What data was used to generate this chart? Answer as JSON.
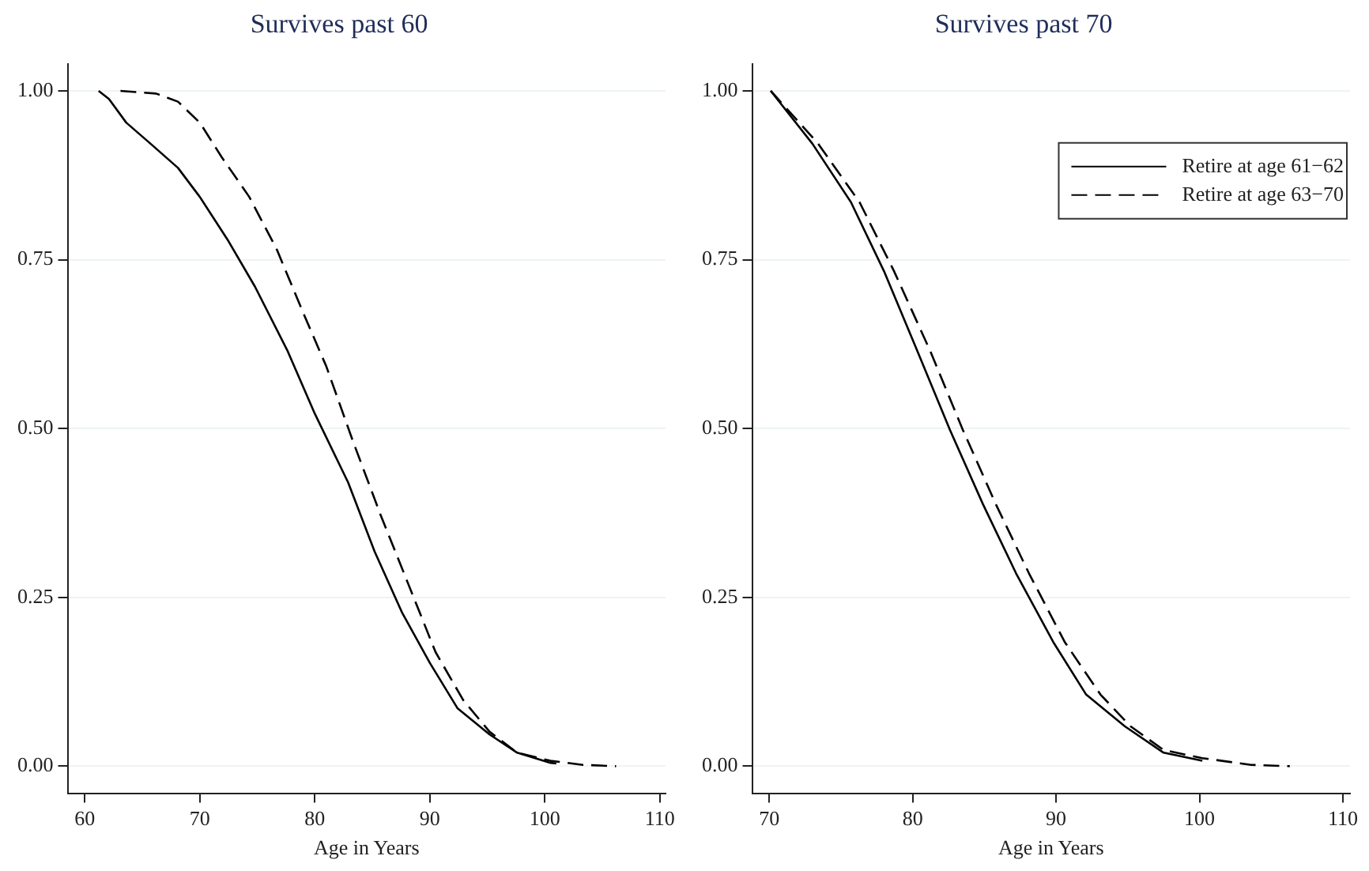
{
  "chart_data": [
    {
      "type": "line",
      "title": "Survives past 60",
      "xlabel": "Age in Years",
      "xlim": [
        58.5,
        110.5
      ],
      "xticks": [
        60,
        70,
        80,
        90,
        100,
        110
      ],
      "ylim": [
        -0.04,
        1.04
      ],
      "yticks": [
        {
          "value": 0,
          "label": "0.00"
        },
        {
          "value": 0.25,
          "label": "0.25"
        },
        {
          "value": 0.5,
          "label": "0.50"
        },
        {
          "value": 0.75,
          "label": "0.75"
        },
        {
          "value": 1,
          "label": "1.00"
        }
      ],
      "grid": "y",
      "legend": false,
      "marker": "none",
      "series": [
        {
          "color": "#000000",
          "line_style": "solid",
          "x": [
            61.2,
            62.1,
            63.6,
            65.7,
            68.1,
            70,
            72.4,
            74.8,
            77.6,
            80,
            82.9,
            85.2,
            87.6,
            90,
            92.4,
            95.2,
            97.6,
            100.5,
            101
          ],
          "values": [
            1,
            0.988,
            0.953,
            0.922,
            0.886,
            0.843,
            0.78,
            0.71,
            0.616,
            0.522,
            0.42,
            0.318,
            0.227,
            0.153,
            0.086,
            0.047,
            0.02,
            0.005,
            0.004
          ]
        },
        {
          "color": "#000000",
          "line_style": "dashed",
          "x": [
            63.1,
            66.2,
            68.1,
            70,
            71.9,
            74.3,
            76.7,
            79,
            81,
            83.3,
            85.7,
            88.1,
            90.5,
            92.9,
            95.2,
            97.6,
            100.5,
            103.3,
            106.2
          ],
          "values": [
            1,
            0.996,
            0.984,
            0.953,
            0.902,
            0.843,
            0.765,
            0.671,
            0.592,
            0.482,
            0.373,
            0.271,
            0.169,
            0.098,
            0.051,
            0.02,
            0.008,
            0.002,
            0
          ]
        }
      ]
    },
    {
      "type": "line",
      "title": "Survives past 70",
      "xlabel": "Age in Years",
      "xlim": [
        68.8,
        110.5
      ],
      "xticks": [
        70,
        80,
        90,
        100,
        110
      ],
      "ylim": [
        -0.04,
        1.04
      ],
      "yticks": [
        {
          "value": 0,
          "label": "0.00"
        },
        {
          "value": 0.25,
          "label": "0.25"
        },
        {
          "value": 0.5,
          "label": "0.50"
        },
        {
          "value": 0.75,
          "label": "0.75"
        },
        {
          "value": 1,
          "label": "1.00"
        }
      ],
      "grid": "y",
      "legend": "top right",
      "marker": "none",
      "series": [
        {
          "name": "Retire at age 61−62",
          "color": "#000000",
          "line_style": "solid",
          "x": [
            70.1,
            73,
            75.7,
            78,
            80.3,
            82.6,
            84.9,
            87.2,
            89.8,
            92.1,
            94.8,
            97.5,
            100.2
          ],
          "values": [
            1,
            0.922,
            0.835,
            0.733,
            0.616,
            0.498,
            0.388,
            0.286,
            0.184,
            0.106,
            0.059,
            0.02,
            0.008
          ]
        },
        {
          "name": "Retire at age 63−70",
          "color": "#000000",
          "line_style": "dashed",
          "x": [
            70.1,
            73.4,
            76.3,
            78.7,
            81.2,
            83.5,
            85.8,
            88.1,
            90.6,
            93.1,
            95.2,
            97.5,
            100.2,
            103.6,
            106.3
          ],
          "values": [
            1,
            0.922,
            0.835,
            0.733,
            0.616,
            0.498,
            0.388,
            0.286,
            0.184,
            0.106,
            0.059,
            0.024,
            0.012,
            0.002,
            0
          ]
        }
      ]
    }
  ]
}
